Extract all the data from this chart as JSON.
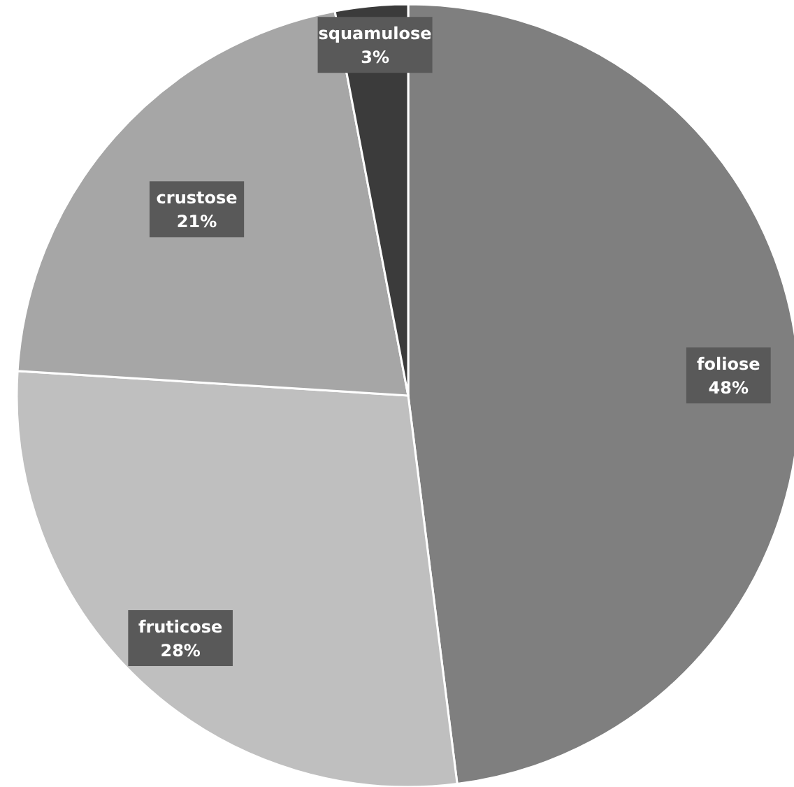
{
  "chart_data": {
    "type": "pie",
    "categories": [
      "foliose",
      "fruticose",
      "crustose",
      "squamulose"
    ],
    "values": [
      48,
      28,
      21,
      3
    ],
    "value_labels": [
      "48%",
      "28%",
      "21%",
      "3%"
    ],
    "colors": [
      "#7f7f7f",
      "#bfbfbf",
      "#a6a6a6",
      "#3b3b3b"
    ]
  }
}
